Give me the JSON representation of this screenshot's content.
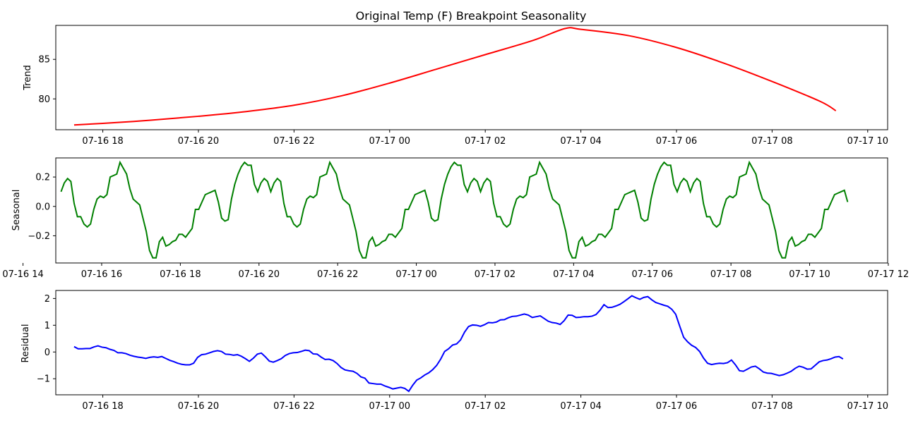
{
  "chart_data": {
    "title": "Original Temp (F) Breakpoint Seasonality",
    "panels": [
      {
        "type": "line",
        "ylabel": "Trend",
        "color": "#ff0000",
        "xlim": [
          "07-16 17:01",
          "07-17 10:25"
        ],
        "ylim": [
          76.1,
          89.3
        ],
        "yticks": [
          80,
          85
        ],
        "xticks": [
          "07-16 18:00",
          "07-16 20:00",
          "07-16 22:00",
          "07-17 00:00",
          "07-17 02:00",
          "07-17 04:00",
          "07-17 06:00",
          "07-17 08:00",
          "07-17 10:00"
        ],
        "xtick_labels": [
          "07-16 18",
          "07-16 20",
          "07-16 22",
          "07-17 00",
          "07-17 02",
          "07-17 04",
          "07-17 06",
          "07-17 08",
          "07-17 10"
        ],
        "x": [
          "07-16 17:24",
          "07-16 18:00",
          "07-16 19:00",
          "07-16 20:00",
          "07-16 21:00",
          "07-16 22:00",
          "07-16 23:00",
          "07-17 00:00",
          "07-17 01:00",
          "07-17 02:00",
          "07-17 03:00",
          "07-17 03:40",
          "07-17 04:00",
          "07-17 05:00",
          "07-17 06:00",
          "07-17 07:00",
          "07-17 08:00",
          "07-17 09:00",
          "07-17 09:20"
        ],
        "y": [
          76.7,
          76.9,
          77.3,
          77.8,
          78.4,
          79.2,
          80.4,
          82.0,
          83.8,
          85.6,
          87.4,
          88.9,
          88.8,
          88.0,
          86.5,
          84.5,
          82.2,
          79.7,
          78.5
        ]
      },
      {
        "type": "line",
        "ylabel": "Seasonal",
        "color": "#008000",
        "xlim": [
          "07-16 14:50",
          "07-17 11:59"
        ],
        "ylim": [
          -0.385,
          0.33
        ],
        "yticks": [
          -0.2,
          0.0,
          0.2
        ],
        "ytick_labels": [
          "−0.2",
          "0.0",
          "0.2"
        ],
        "xticks": [
          "07-16 14:00",
          "07-16 16:00",
          "07-16 18:00",
          "07-16 20:00",
          "07-16 22:00",
          "07-17 00:00",
          "07-17 02:00",
          "07-17 04:00",
          "07-17 06:00",
          "07-17 08:00",
          "07-17 10:00",
          "07-17 12:00"
        ],
        "xtick_labels": [
          "07-16 14",
          "07-16 16",
          "07-16 18",
          "07-16 20",
          "07-16 22",
          "07-17 00",
          "07-17 02",
          "07-17 04",
          "07-17 06",
          "07-17 08",
          "07-17 10",
          "07-17 12"
        ],
        "x_start": "07-16 14:58",
        "step_minutes": 5,
        "period_values": [
          0.1,
          0.16,
          0.19,
          0.17,
          0.02,
          -0.07,
          -0.07,
          -0.12,
          -0.14,
          -0.12,
          -0.02,
          0.05,
          0.07,
          0.06,
          0.08,
          0.2,
          0.21,
          0.22,
          0.3,
          0.26,
          0.22,
          0.12,
          0.05,
          0.03,
          0.01,
          -0.08,
          -0.17,
          -0.3,
          -0.35,
          -0.35,
          -0.24,
          -0.21,
          -0.27,
          -0.26,
          -0.24,
          -0.23,
          -0.19,
          -0.19,
          -0.21,
          -0.18,
          -0.15,
          -0.02,
          -0.02,
          0.03,
          0.08,
          0.09,
          0.1,
          0.11,
          0.03,
          -0.08,
          -0.1,
          -0.09,
          0.05,
          0.15,
          0.22,
          0.27,
          0.3,
          0.28,
          0.28,
          0.15,
          0.1,
          0.16,
          0.19,
          0.17
        ],
        "num_points": 241
      },
      {
        "type": "line",
        "ylabel": "Residual",
        "color": "#0000ff",
        "xlim": [
          "07-16 17:01",
          "07-17 10:25"
        ],
        "ylim": [
          -1.6,
          2.3
        ],
        "yticks": [
          -1,
          0,
          1,
          2
        ],
        "ytick_labels": [
          "−1",
          "0",
          "1",
          "2"
        ],
        "xticks": [
          "07-16 18:00",
          "07-16 20:00",
          "07-16 22:00",
          "07-17 00:00",
          "07-17 02:00",
          "07-17 04:00",
          "07-17 06:00",
          "07-17 08:00",
          "07-17 10:00"
        ],
        "xtick_labels": [
          "07-16 18",
          "07-16 20",
          "07-16 22",
          "07-17 00",
          "07-17 02",
          "07-17 04",
          "07-17 06",
          "07-17 08",
          "07-17 10"
        ],
        "x_start": "07-16 17:24",
        "step_minutes": 5,
        "values": [
          0.2,
          0.12,
          0.12,
          0.13,
          0.13,
          0.19,
          0.23,
          0.18,
          0.16,
          0.1,
          0.06,
          -0.03,
          -0.03,
          -0.06,
          -0.12,
          -0.16,
          -0.19,
          -0.21,
          -0.24,
          -0.2,
          -0.18,
          -0.2,
          -0.17,
          -0.24,
          -0.31,
          -0.36,
          -0.42,
          -0.46,
          -0.48,
          -0.48,
          -0.42,
          -0.2,
          -0.1,
          -0.08,
          -0.03,
          0.02,
          0.05,
          0.02,
          -0.08,
          -0.09,
          -0.12,
          -0.1,
          -0.16,
          -0.25,
          -0.35,
          -0.23,
          -0.08,
          -0.04,
          -0.18,
          -0.34,
          -0.38,
          -0.32,
          -0.25,
          -0.13,
          -0.06,
          -0.03,
          -0.02,
          0.02,
          0.07,
          0.05,
          -0.07,
          -0.08,
          -0.19,
          -0.28,
          -0.27,
          -0.32,
          -0.43,
          -0.58,
          -0.67,
          -0.7,
          -0.72,
          -0.8,
          -0.93,
          -0.98,
          -1.16,
          -1.18,
          -1.2,
          -1.2,
          -1.27,
          -1.32,
          -1.38,
          -1.35,
          -1.32,
          -1.36,
          -1.47,
          -1.24,
          -1.05,
          -0.97,
          -0.86,
          -0.78,
          -0.66,
          -0.5,
          -0.27,
          0.02,
          0.12,
          0.26,
          0.3,
          0.45,
          0.74,
          0.95,
          1.01,
          1.0,
          0.96,
          1.02,
          1.1,
          1.09,
          1.12,
          1.2,
          1.21,
          1.28,
          1.33,
          1.34,
          1.38,
          1.42,
          1.38,
          1.29,
          1.32,
          1.35,
          1.25,
          1.15,
          1.1,
          1.08,
          1.03,
          1.17,
          1.38,
          1.37,
          1.29,
          1.3,
          1.32,
          1.32,
          1.34,
          1.4,
          1.56,
          1.77,
          1.66,
          1.67,
          1.72,
          1.78,
          1.88,
          1.99,
          2.1,
          2.03,
          1.97,
          2.04,
          2.07,
          1.95,
          1.85,
          1.8,
          1.75,
          1.71,
          1.6,
          1.41,
          0.97,
          0.55,
          0.38,
          0.25,
          0.17,
          0.02,
          -0.23,
          -0.42,
          -0.47,
          -0.44,
          -0.42,
          -0.43,
          -0.4,
          -0.3,
          -0.48,
          -0.7,
          -0.72,
          -0.64,
          -0.56,
          -0.53,
          -0.63,
          -0.75,
          -0.79,
          -0.8,
          -0.84,
          -0.88,
          -0.85,
          -0.79,
          -0.72,
          -0.61,
          -0.53,
          -0.57,
          -0.64,
          -0.63,
          -0.5,
          -0.37,
          -0.32,
          -0.3,
          -0.25,
          -0.19,
          -0.17,
          -0.26
        ]
      }
    ]
  }
}
